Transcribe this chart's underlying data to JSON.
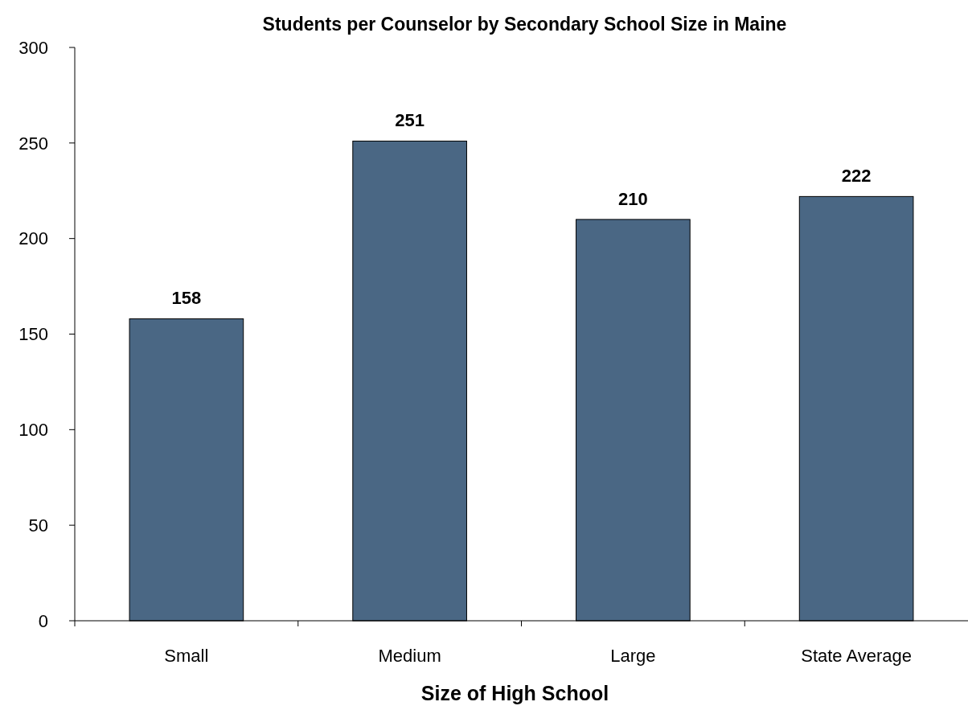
{
  "chart_data": {
    "type": "bar",
    "title": "Students per Counselor by Secondary School Size in Maine",
    "xlabel": "Size of High School",
    "categories": [
      "Small",
      "Medium",
      "Large",
      "State Average"
    ],
    "values": [
      158,
      251,
      210,
      222
    ],
    "color": "#4a6784",
    "ylim": [
      0,
      300
    ],
    "yticks": [
      0,
      50,
      100,
      150,
      200,
      250,
      300
    ],
    "data_labels": true
  }
}
